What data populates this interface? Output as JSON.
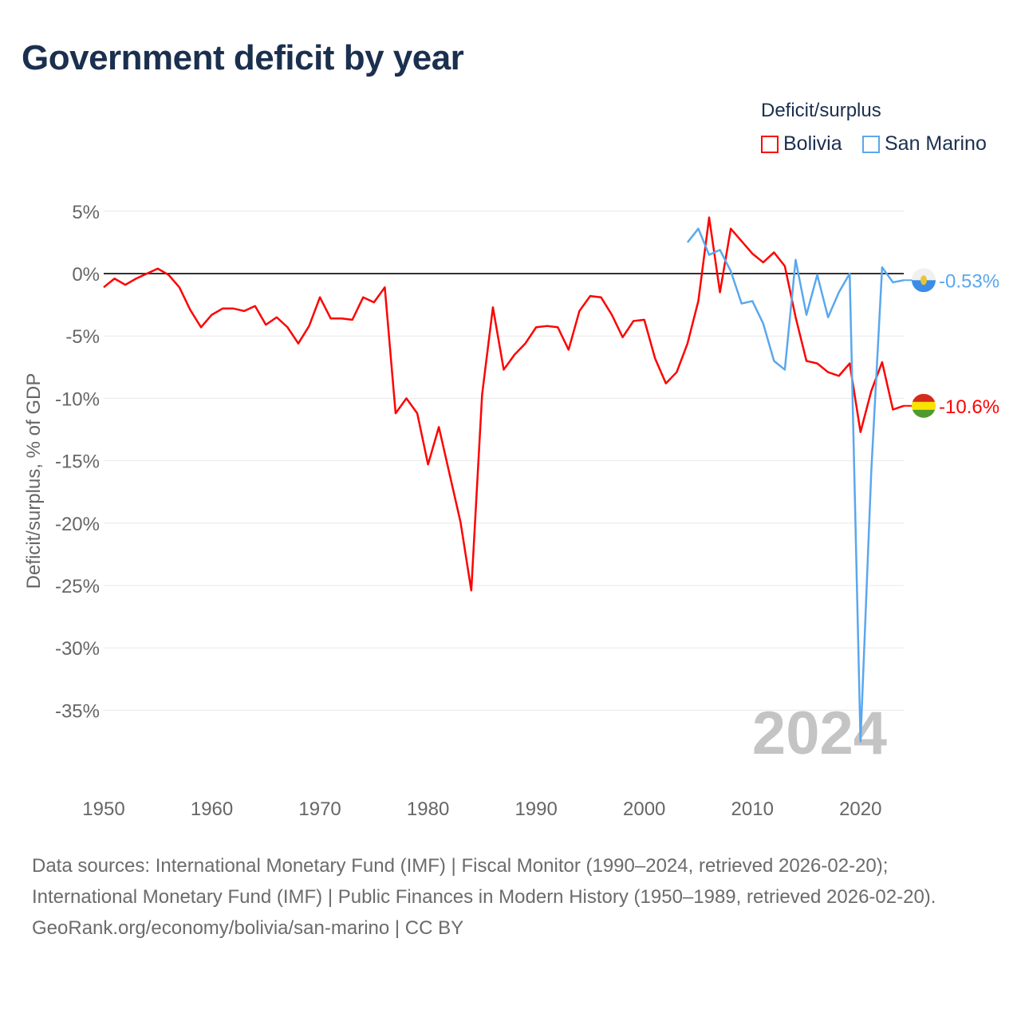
{
  "title": "Government deficit by year",
  "legend": {
    "title": "Deficit/surplus",
    "items": [
      {
        "label": "Bolivia",
        "color": "#ff0000"
      },
      {
        "label": "San Marino",
        "color": "#5aa7ee"
      }
    ]
  },
  "chart_data": {
    "type": "line",
    "title": "Government deficit by year",
    "ylabel": "Deficit/surplus, % of GDP",
    "xlabel": "",
    "ylim": [
      -40,
      5
    ],
    "xlim": [
      1950,
      2024
    ],
    "yticks": [
      5,
      0,
      -5,
      -10,
      -15,
      -20,
      -25,
      -30,
      -35
    ],
    "ytick_labels": [
      "5%",
      "0%",
      "-5%",
      "-10%",
      "-15%",
      "-20%",
      "-25%",
      "-30%",
      "-35%"
    ],
    "xticks": [
      1950,
      1960,
      1970,
      1980,
      1990,
      2000,
      2010,
      2020
    ],
    "xtick_labels": [
      "1950",
      "1960",
      "1970",
      "1980",
      "1990",
      "2000",
      "2010",
      "2020"
    ],
    "watermark_year": "2024",
    "grid": true,
    "legend_position": "top-right",
    "series": [
      {
        "name": "Bolivia",
        "color": "#ff0000",
        "end_label": "-10.6%",
        "start_year": 1950,
        "values": [
          -1.1,
          -0.4,
          -0.9,
          -0.4,
          0.0,
          0.4,
          -0.1,
          -1.1,
          -2.9,
          -4.3,
          -3.3,
          -2.8,
          -2.8,
          -3.0,
          -2.6,
          -4.1,
          -3.5,
          -4.3,
          -5.6,
          -4.2,
          -1.9,
          -3.6,
          -3.6,
          -3.7,
          -1.9,
          -2.3,
          -1.1,
          -11.2,
          -10.0,
          -11.2,
          -15.3,
          -12.3,
          -16.1,
          -19.9,
          -25.4,
          -9.7,
          -2.7,
          -7.7,
          -6.5,
          -5.6,
          -4.3,
          -4.2,
          -4.3,
          -6.1,
          -3.0,
          -1.8,
          -1.9,
          -3.3,
          -5.1,
          -3.8,
          -3.7,
          -6.8,
          -8.8,
          -7.9,
          -5.6,
          -2.2,
          4.5,
          -1.5,
          3.6,
          2.6,
          1.6,
          0.9,
          1.7,
          0.6,
          -3.5,
          -7.0,
          -7.2,
          -7.9,
          -8.2,
          -7.2,
          -12.7,
          -9.4,
          -7.1,
          -10.9,
          -10.6
        ]
      },
      {
        "name": "San Marino",
        "color": "#5aa7ee",
        "end_label": "-0.53%",
        "start_year": 2004,
        "values": [
          2.5,
          3.6,
          1.5,
          1.9,
          0.2,
          -2.4,
          -2.2,
          -4.0,
          -7.0,
          -7.7,
          1.1,
          -3.3,
          -0.1,
          -3.5,
          -1.5,
          0.0,
          -37.5,
          -15.8,
          0.5,
          -0.7,
          -0.53
        ]
      }
    ]
  },
  "footer": {
    "sources": "Data sources: International Monetary Fund (IMF) | Fiscal Monitor (1990–2024, retrieved 2026-02-20); International Monetary Fund (IMF) | Public Finances in Modern History (1950–1989, retrieved 2026-02-20).",
    "credit": "GeoRank.org/economy/bolivia/san-marino | CC BY"
  }
}
